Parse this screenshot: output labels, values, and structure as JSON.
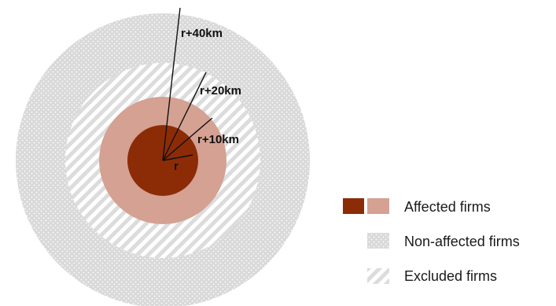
{
  "diagram": {
    "radius_labels": {
      "r": "r",
      "r10": "r+10km",
      "r20": "r+20km",
      "r40": "r+40km"
    },
    "legend": {
      "affected": "Affected firms",
      "non_affected": "Non-affected firms",
      "excluded": "Excluded firms"
    },
    "colors": {
      "affected_inner": "#8c2c07",
      "affected_outer": "#d4a193",
      "non_affected": "#dadada",
      "excluded_stripe": "#dcdcdc"
    }
  }
}
